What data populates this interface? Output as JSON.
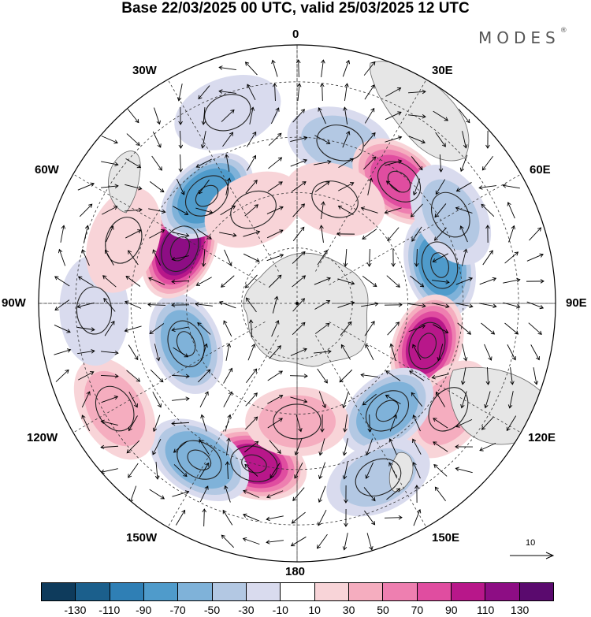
{
  "title": "Base 22/03/2025 00 UTC, valid 25/03/2025 12 UTC",
  "brand": {
    "name": "MODES",
    "mark": "®"
  },
  "longitude_labels": {
    "top": "0",
    "bottom": "180",
    "left": "90W",
    "right": "90E",
    "upper_left_1": "30W",
    "upper_left_2": "60W",
    "upper_right_1": "30E",
    "upper_right_2": "60E",
    "lower_left_1": "120W",
    "lower_left_2": "150W",
    "lower_right_1": "120E",
    "lower_right_2": "150E"
  },
  "reference_vector": {
    "label": "10"
  },
  "colorbar": {
    "ticks": [
      "-130",
      "-110",
      "-90",
      "-70",
      "-50",
      "-30",
      "-10",
      "10",
      "30",
      "50",
      "70",
      "90",
      "110",
      "130"
    ],
    "colors": [
      "#0e3b5c",
      "#1b5f8c",
      "#2f7fb5",
      "#4f9bcb",
      "#7fb2d9",
      "#b3c8e3",
      "#d9dbee",
      "#ffffff",
      "#f8d4d8",
      "#f5adbf",
      "#ee7fb0",
      "#e04da0",
      "#b8178a",
      "#8d0d84",
      "#5a0a6e"
    ]
  },
  "anomalies": [
    {
      "lon": 15,
      "lat": -45,
      "v": -35
    },
    {
      "lon": 40,
      "lat": -47,
      "v": 80
    },
    {
      "lon": 20,
      "lat": -60,
      "v": 20
    },
    {
      "lon": 75,
      "lat": -50,
      "v": -75
    },
    {
      "lon": 60,
      "lat": -42,
      "v": -30
    },
    {
      "lon": 108,
      "lat": -53,
      "v": 95
    },
    {
      "lon": 125,
      "lat": -40,
      "v": 35
    },
    {
      "lon": 140,
      "lat": -52,
      "v": -60
    },
    {
      "lon": 155,
      "lat": -38,
      "v": -35
    },
    {
      "lon": 195,
      "lat": -45,
      "v": 90
    },
    {
      "lon": 180,
      "lat": -58,
      "v": 35
    },
    {
      "lon": 212,
      "lat": -40,
      "v": -65
    },
    {
      "lon": 240,
      "lat": -33,
      "v": 35
    },
    {
      "lon": 250,
      "lat": -58,
      "v": -60
    },
    {
      "lon": 268,
      "lat": -35,
      "v": -20
    },
    {
      "lon": 295,
      "lat": -55,
      "v": 115
    },
    {
      "lon": 290,
      "lat": -40,
      "v": 20
    },
    {
      "lon": 320,
      "lat": -52,
      "v": -85
    },
    {
      "lon": 340,
      "lat": -35,
      "v": -15
    },
    {
      "lon": 335,
      "lat": -62,
      "v": 15
    }
  ]
}
